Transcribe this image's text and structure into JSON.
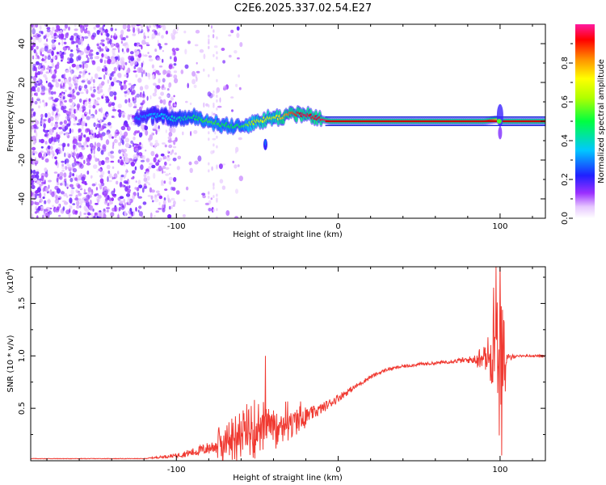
{
  "title": "C2E6.2025.337.02.54.E27",
  "colors": {
    "signal": "#ff0000",
    "noise": "#7b1ee0",
    "snr_line": "#f03a32"
  },
  "chart_data": [
    {
      "type": "heatmap",
      "name": "spectrogram",
      "xlabel": "Height of straight line (km)",
      "ylabel": "Frequency (Hz)",
      "xlim": [
        -190,
        128
      ],
      "ylim": [
        -50,
        50
      ],
      "xticks": [
        -100,
        0,
        100
      ],
      "xtick_labels": [
        "-100",
        "0",
        "100"
      ],
      "yticks": [
        -40,
        -20,
        0,
        20,
        40
      ],
      "ytick_labels": [
        "-40",
        "-20",
        "0",
        "20",
        "40"
      ],
      "colorbar": {
        "label": "Normalized spectral amplitude",
        "range": [
          0,
          1
        ],
        "ticks": [
          0.0,
          0.2,
          0.4,
          0.6,
          0.8
        ],
        "tick_labels": [
          "0.0",
          "0.2",
          "0.4",
          "0.6",
          "0.8"
        ]
      },
      "ridge": {
        "x": [
          -125,
          -110,
          -100,
          -90,
          -80,
          -70,
          -60,
          -55,
          -50,
          -45,
          -40,
          -35,
          -30,
          -25,
          -20,
          -15,
          -10,
          -5,
          0,
          20,
          40,
          60,
          80,
          90,
          98,
          100,
          102,
          128
        ],
        "freq": [
          2,
          3,
          1,
          2,
          0,
          -2,
          -3,
          -1,
          0,
          1,
          2,
          2,
          4,
          4,
          3,
          2,
          1,
          0,
          0,
          0,
          0,
          0,
          0,
          0,
          1,
          0,
          0,
          0
        ],
        "amplitude": [
          0.3,
          0.35,
          0.4,
          0.45,
          0.55,
          0.5,
          0.5,
          0.6,
          0.65,
          0.7,
          0.65,
          0.75,
          0.85,
          0.9,
          0.95,
          0.9,
          0.95,
          1.0,
          1.0,
          1.0,
          1.0,
          1.0,
          1.0,
          1.0,
          0.8,
          0.6,
          1.0,
          1.0
        ]
      },
      "noise_region_x": [
        -190,
        -60
      ]
    },
    {
      "type": "line",
      "name": "snr",
      "xlabel": "Height of straight line (km)",
      "ylabel": "SNR (10 * v/v)",
      "yscale_label": "(x10",
      "yscale_exponent": "4",
      "xlim": [
        -190,
        128
      ],
      "ylim": [
        0,
        1.85
      ],
      "xticks": [
        -100,
        0,
        100
      ],
      "xtick_labels": [
        "-100",
        "0",
        "100"
      ],
      "yticks": [
        0.5,
        1.0,
        1.5
      ],
      "ytick_labels": [
        "0.5",
        "1.0",
        "1.5"
      ],
      "envelope": {
        "x": [
          -190,
          -120,
          -100,
          -90,
          -80,
          -70,
          -60,
          -50,
          -40,
          -30,
          -20,
          -10,
          0,
          10,
          20,
          30,
          40,
          50,
          60,
          70,
          80,
          90,
          94,
          98,
          101,
          104,
          110,
          128
        ],
        "base": [
          0.02,
          0.02,
          0.05,
          0.08,
          0.12,
          0.18,
          0.25,
          0.3,
          0.35,
          0.38,
          0.42,
          0.5,
          0.6,
          0.7,
          0.8,
          0.87,
          0.9,
          0.92,
          0.93,
          0.95,
          0.96,
          0.98,
          1.0,
          1.05,
          0.8,
          0.97,
          1.0,
          1.0
        ],
        "spread": [
          0.005,
          0.005,
          0.04,
          0.08,
          0.12,
          0.2,
          0.3,
          0.3,
          0.25,
          0.2,
          0.15,
          0.1,
          0.08,
          0.05,
          0.04,
          0.03,
          0.03,
          0.03,
          0.03,
          0.04,
          0.06,
          0.12,
          0.25,
          0.6,
          0.8,
          0.1,
          0.02,
          0.02
        ]
      },
      "spikes": [
        {
          "x": -45,
          "y": 1.0
        },
        {
          "x": 96,
          "y": 1.65
        },
        {
          "x": 97.5,
          "y": 1.85
        },
        {
          "x": 100,
          "y": 1.9
        },
        {
          "x": 101,
          "y": 0.05
        }
      ]
    }
  ]
}
